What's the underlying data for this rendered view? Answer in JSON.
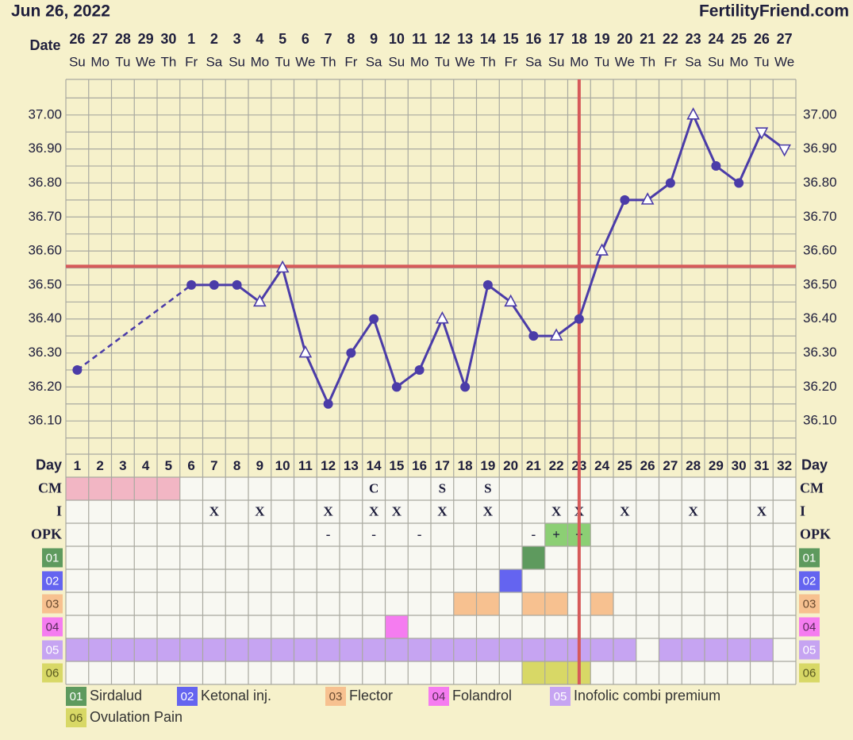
{
  "header": {
    "date": "Jun 26, 2022",
    "site": "FertilityFriend.com"
  },
  "chart_data": {
    "type": "line",
    "date_label": "Date",
    "dates": [
      "26",
      "27",
      "28",
      "29",
      "30",
      "1",
      "2",
      "3",
      "4",
      "5",
      "6",
      "7",
      "8",
      "9",
      "10",
      "11",
      "12",
      "13",
      "14",
      "15",
      "16",
      "17",
      "18",
      "19",
      "20",
      "21",
      "22",
      "23",
      "24",
      "25",
      "26",
      "27"
    ],
    "weekdays": [
      "Su",
      "Mo",
      "Tu",
      "We",
      "Th",
      "Fr",
      "Sa",
      "Su",
      "Mo",
      "Tu",
      "We",
      "Th",
      "Fr",
      "Sa",
      "Su",
      "Mo",
      "Tu",
      "We",
      "Th",
      "Fr",
      "Sa",
      "Su",
      "Mo",
      "Tu",
      "We",
      "Th",
      "Fr",
      "Sa",
      "Su",
      "Mo",
      "Tu",
      "We"
    ],
    "x": [
      1,
      2,
      3,
      4,
      5,
      6,
      7,
      8,
      9,
      10,
      11,
      12,
      13,
      14,
      15,
      16,
      17,
      18,
      19,
      20,
      21,
      22,
      23,
      24,
      25,
      26,
      27,
      28,
      29,
      30,
      31,
      32
    ],
    "xlim": [
      0.5,
      32.5
    ],
    "values": [
      36.25,
      null,
      null,
      null,
      null,
      36.5,
      36.5,
      36.5,
      36.45,
      36.55,
      36.3,
      36.15,
      36.3,
      36.4,
      36.2,
      36.25,
      36.4,
      36.2,
      36.5,
      36.45,
      36.35,
      36.35,
      36.4,
      36.6,
      36.75,
      36.75,
      36.8,
      37.0,
      36.85,
      36.8,
      36.95,
      36.9
    ],
    "markers": [
      "dot",
      null,
      null,
      null,
      null,
      "dot",
      "dot",
      "dot",
      "up",
      "up",
      "up",
      "dot",
      "dot",
      "dot",
      "dot",
      "dot",
      "up",
      "dot",
      "dot",
      "up",
      "dot",
      "up",
      "dot",
      "up",
      "dot",
      "up",
      "dot",
      "up",
      "dot",
      "dot",
      "down",
      "down"
    ],
    "color": "#4b3ca8",
    "ylim": [
      36.0,
      37.1
    ],
    "yticks": [
      {
        "value": 36.1,
        "label": "36.10"
      },
      {
        "value": 36.2,
        "label": "36.20"
      },
      {
        "value": 36.3,
        "label": "36.30"
      },
      {
        "value": 36.4,
        "label": "36.40"
      },
      {
        "value": 36.5,
        "label": "36.50"
      },
      {
        "value": 36.6,
        "label": "36.60"
      },
      {
        "value": 36.7,
        "label": "36.70"
      },
      {
        "value": 36.8,
        "label": "36.80"
      },
      {
        "value": 36.9,
        "label": "36.90"
      },
      {
        "value": 37.0,
        "label": "37.00"
      }
    ],
    "grid": true,
    "coverline": 36.555,
    "ovulation_day": 23,
    "reference_color": "#d65a5a"
  },
  "table": {
    "day_label": "Day",
    "rows": [
      {
        "label": "CM",
        "cells": [
          null,
          null,
          null,
          null,
          null,
          null,
          null,
          null,
          null,
          null,
          null,
          null,
          null,
          "C",
          null,
          null,
          "S",
          null,
          "S",
          null,
          null,
          null,
          null,
          null,
          null,
          null,
          null,
          null,
          null,
          null,
          null,
          null
        ]
      },
      {
        "label": "I",
        "cells": [
          null,
          null,
          null,
          null,
          null,
          null,
          "X",
          null,
          "X",
          null,
          null,
          "X",
          null,
          "X",
          "X",
          null,
          "X",
          null,
          "X",
          null,
          null,
          "X",
          "X",
          null,
          "X",
          null,
          null,
          "X",
          null,
          null,
          "X",
          null
        ]
      },
      {
        "label": "OPK",
        "cells": [
          null,
          null,
          null,
          null,
          null,
          null,
          null,
          null,
          null,
          null,
          null,
          "-",
          null,
          "-",
          null,
          "-",
          null,
          null,
          null,
          null,
          "-",
          "+",
          "+",
          null,
          null,
          null,
          null,
          null,
          null,
          null,
          null,
          null
        ]
      }
    ],
    "period_days": [
      1,
      2,
      3,
      4,
      5
    ],
    "period_color": "#f2b6c4",
    "opk_positive_color": "#8ccf74"
  },
  "medications": [
    {
      "code": "01",
      "name": "Sirdalud",
      "color": "#5e9a5e",
      "text_color": "#ffffff",
      "days": [
        21
      ]
    },
    {
      "code": "02",
      "name": "Ketonal inj.",
      "color": "#6464f0",
      "text_color": "#ffffff",
      "days": [
        20
      ]
    },
    {
      "code": "03",
      "name": "Flector",
      "color": "#f7c190",
      "text_color": "#6a4a30",
      "days": [
        18,
        19,
        21,
        22,
        24
      ]
    },
    {
      "code": "04",
      "name": "Folandrol",
      "color": "#f57cf0",
      "text_color": "#5a2a5a",
      "days": [
        15
      ]
    },
    {
      "code": "05",
      "name": "Inofolic combi premium",
      "color": "#c6a4f2",
      "text_color": "#ffffff",
      "days": [
        1,
        2,
        3,
        4,
        5,
        6,
        7,
        8,
        9,
        10,
        11,
        12,
        13,
        14,
        15,
        16,
        17,
        18,
        19,
        20,
        21,
        22,
        23,
        24,
        25,
        27,
        28,
        29,
        30,
        31
      ]
    },
    {
      "code": "06",
      "name": "Ovulation Pain",
      "color": "#d8d866",
      "text_color": "#5a5a20",
      "days": [
        21,
        22,
        23
      ]
    }
  ]
}
